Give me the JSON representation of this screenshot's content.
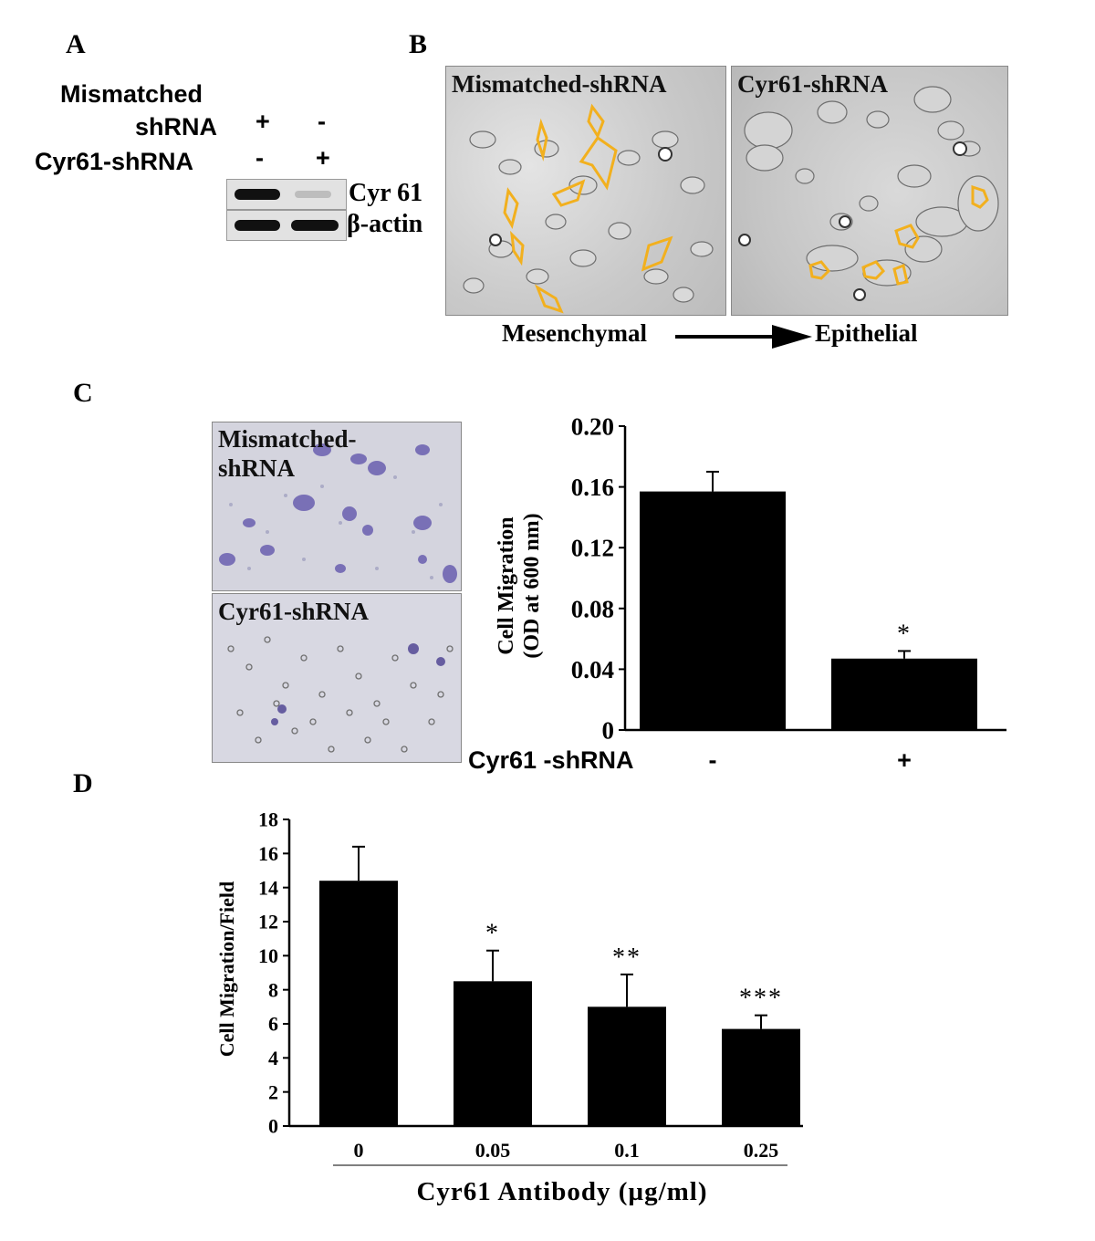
{
  "panels": {
    "a": {
      "letter": "A",
      "row1_label_line1": "Mismatched",
      "row1_label_line2": "shRNA",
      "row1_lane1": "+",
      "row1_lane2": "-",
      "row2_label": "Cyr61-shRNA",
      "row2_lane1": "-",
      "row2_lane2": "+",
      "band1": "Cyr 61",
      "band2": "β-actin"
    },
    "b": {
      "letter": "B",
      "left_title": "Mismatched-shRNA",
      "right_title": "Cyr61-shRNA",
      "from_label": "Mesenchymal",
      "to_label": "Epithelial"
    },
    "c": {
      "letter": "C",
      "top_title_line1": "Mismatched-",
      "top_title_line2": "shRNA",
      "bottom_title": "Cyr61-shRNA"
    },
    "d": {
      "letter": "D"
    }
  },
  "colors": {
    "bar": "#000000",
    "outline": "#f2b01e",
    "stain": "#6a5fb0"
  },
  "chart_data": [
    {
      "type": "bar",
      "title": "",
      "xlabel": "Cyr61 -shRNA",
      "ylabel_line1": "Cell Migration",
      "ylabel_line2": "(OD at 600 nm)",
      "categories": [
        "-",
        "+"
      ],
      "values": [
        0.157,
        0.047
      ],
      "errors": [
        0.013,
        0.005
      ],
      "annotations": [
        "",
        "*"
      ],
      "ylim": [
        0,
        0.2
      ],
      "yticks": [
        0,
        0.04,
        0.08,
        0.12,
        0.16,
        0.2
      ],
      "ytick_labels": [
        "0",
        "0.04",
        "0.08",
        "0.12",
        "0.16",
        "0.20"
      ],
      "grid": false
    },
    {
      "type": "bar",
      "title": "",
      "xlabel": "Cyr61 Antibody (µg/ml)",
      "ylabel": "Cell Migration/Field",
      "categories": [
        "0",
        "0.05",
        "0.1",
        "0.25"
      ],
      "values": [
        14.4,
        8.5,
        7.0,
        5.7
      ],
      "errors": [
        2.0,
        1.8,
        1.9,
        0.8
      ],
      "annotations": [
        "",
        "*",
        "**",
        "***"
      ],
      "ylim": [
        0,
        18
      ],
      "yticks": [
        0,
        2,
        4,
        6,
        8,
        10,
        12,
        14,
        16,
        18
      ],
      "ytick_labels": [
        "0",
        "2",
        "4",
        "6",
        "8",
        "10",
        "12",
        "14",
        "16",
        "18"
      ],
      "grid": false
    }
  ]
}
